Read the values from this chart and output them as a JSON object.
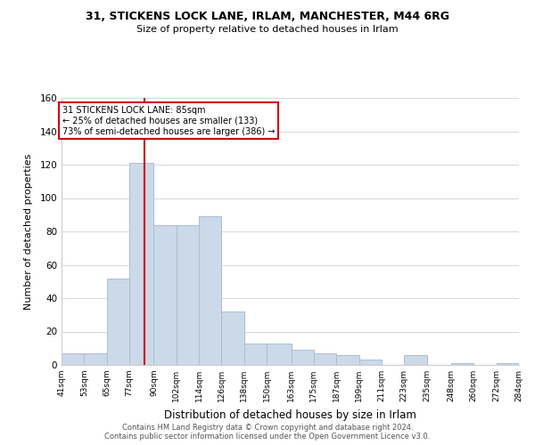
{
  "title_line1": "31, STICKENS LOCK LANE, IRLAM, MANCHESTER, M44 6RG",
  "title_line2": "Size of property relative to detached houses in Irlam",
  "xlabel": "Distribution of detached houses by size in Irlam",
  "ylabel": "Number of detached properties",
  "bar_color": "#ccd9e8",
  "bar_edge_color": "#aabdd4",
  "vline_color": "#cc0000",
  "vline_x": 85,
  "annotation_title": "31 STICKENS LOCK LANE: 85sqm",
  "annotation_line2": "← 25% of detached houses are smaller (133)",
  "annotation_line3": "73% of semi-detached houses are larger (386) →",
  "bin_edges": [
    41,
    53,
    65,
    77,
    90,
    102,
    114,
    126,
    138,
    150,
    163,
    175,
    187,
    199,
    211,
    223,
    235,
    248,
    260,
    272,
    284
  ],
  "bin_heights": [
    7,
    7,
    52,
    121,
    84,
    84,
    89,
    32,
    13,
    13,
    9,
    7,
    6,
    3,
    0,
    6,
    0,
    1,
    0,
    1
  ],
  "tick_labels": [
    "41sqm",
    "53sqm",
    "65sqm",
    "77sqm",
    "90sqm",
    "102sqm",
    "114sqm",
    "126sqm",
    "138sqm",
    "150sqm",
    "163sqm",
    "175sqm",
    "187sqm",
    "199sqm",
    "211sqm",
    "223sqm",
    "235sqm",
    "248sqm",
    "260sqm",
    "272sqm",
    "284sqm"
  ],
  "yticks": [
    0,
    20,
    40,
    60,
    80,
    100,
    120,
    140,
    160
  ],
  "ylim": [
    0,
    160
  ],
  "footer_line1": "Contains HM Land Registry data © Crown copyright and database right 2024.",
  "footer_line2": "Contains public sector information licensed under the Open Government Licence v3.0.",
  "background_color": "#ffffff",
  "grid_color": "#d4dce4"
}
